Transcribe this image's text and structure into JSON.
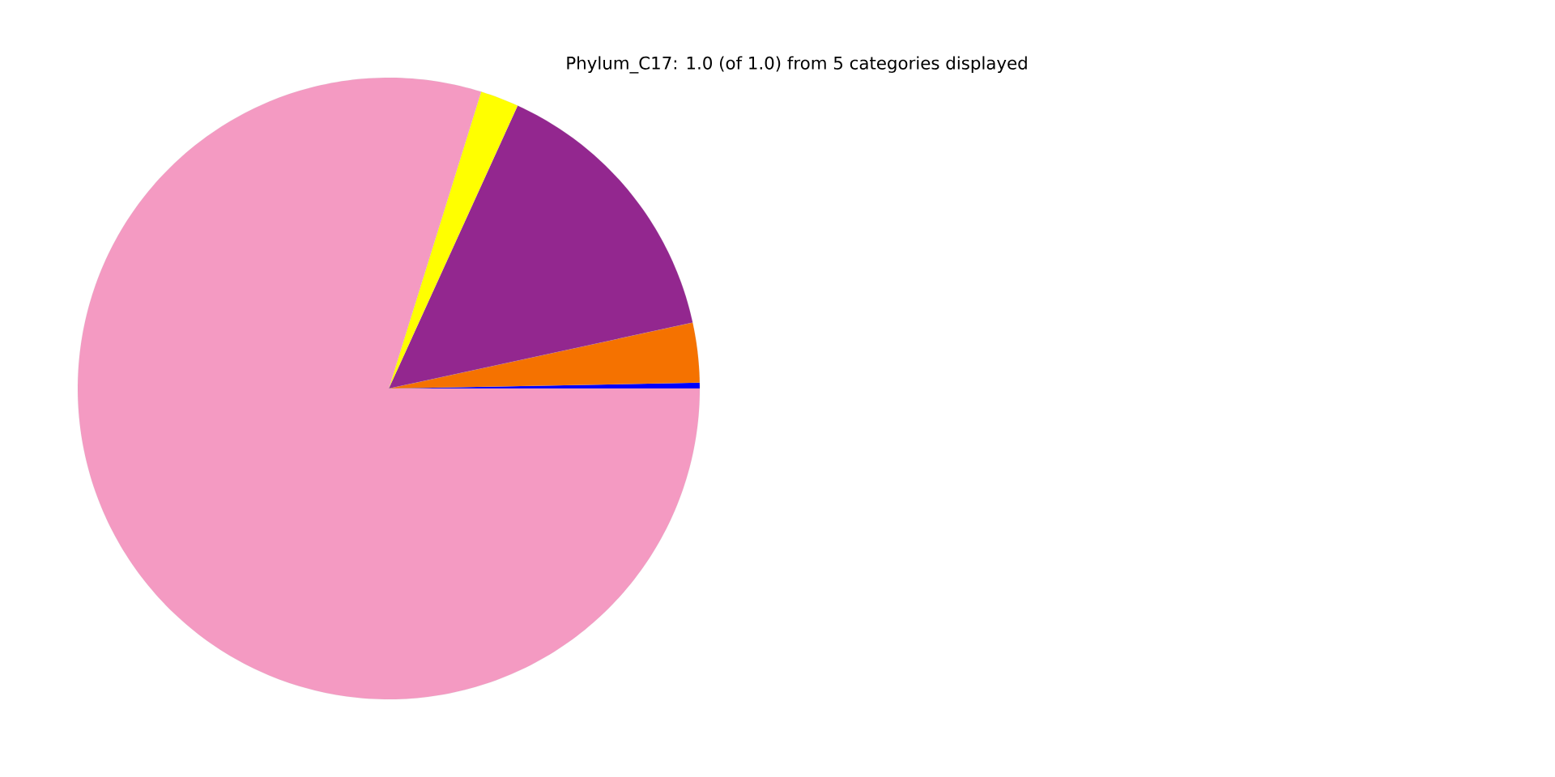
{
  "chart_data": {
    "type": "pie",
    "title": "Phylum_C17: 1.0 (of 1.0) from 5 categories displayed",
    "categories": [
      null,
      null,
      null,
      null,
      null
    ],
    "values": [
      0.3,
      3.1,
      14.8,
      2.0,
      79.8
    ],
    "colors": [
      "#0000ff",
      "#f57200",
      "#93278f",
      "#ffff00",
      "#f49ac2"
    ]
  }
}
